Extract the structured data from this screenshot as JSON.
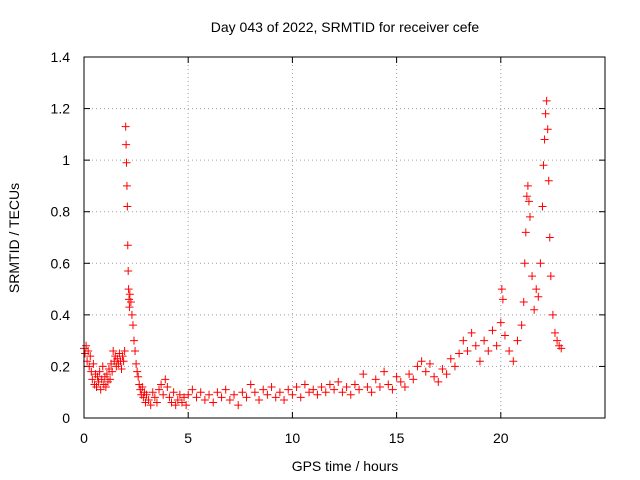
{
  "chart_data": {
    "type": "scatter",
    "title": "Day 043 of 2022, SRMTID for receiver cefe",
    "xlabel": "GPS time / hours",
    "ylabel": "SRMTID / TECUs",
    "xlim": [
      0,
      25
    ],
    "ylim": [
      0,
      1.4
    ],
    "x_ticks": [
      0,
      5,
      10,
      15,
      20
    ],
    "y_ticks": [
      0,
      0.2,
      0.4,
      0.6,
      0.8,
      1,
      1.2,
      1.4
    ],
    "x_tick_labels": [
      "0",
      "5",
      "10",
      "15",
      "20"
    ],
    "y_tick_labels": [
      "0",
      "0.2",
      "0.4",
      "0.6",
      "0.8",
      "1",
      "1.2",
      "1.4"
    ],
    "grid": true,
    "marker": "+",
    "color": "#ff0000",
    "series": [
      {
        "name": "SRMTID",
        "points": [
          [
            0.0,
            0.27
          ],
          [
            0.05,
            0.25
          ],
          [
            0.1,
            0.28
          ],
          [
            0.15,
            0.22
          ],
          [
            0.2,
            0.26
          ],
          [
            0.25,
            0.2
          ],
          [
            0.3,
            0.24
          ],
          [
            0.35,
            0.18
          ],
          [
            0.4,
            0.15
          ],
          [
            0.45,
            0.21
          ],
          [
            0.5,
            0.13
          ],
          [
            0.55,
            0.17
          ],
          [
            0.6,
            0.12
          ],
          [
            0.65,
            0.16
          ],
          [
            0.7,
            0.14
          ],
          [
            0.75,
            0.18
          ],
          [
            0.8,
            0.11
          ],
          [
            0.85,
            0.15
          ],
          [
            0.9,
            0.2
          ],
          [
            0.95,
            0.13
          ],
          [
            1.0,
            0.16
          ],
          [
            1.05,
            0.12
          ],
          [
            1.1,
            0.17
          ],
          [
            1.15,
            0.14
          ],
          [
            1.2,
            0.19
          ],
          [
            1.25,
            0.15
          ],
          [
            1.3,
            0.21
          ],
          [
            1.35,
            0.18
          ],
          [
            1.4,
            0.26
          ],
          [
            1.45,
            0.22
          ],
          [
            1.5,
            0.24
          ],
          [
            1.55,
            0.2
          ],
          [
            1.6,
            0.23
          ],
          [
            1.65,
            0.21
          ],
          [
            1.7,
            0.25
          ],
          [
            1.75,
            0.22
          ],
          [
            1.8,
            0.19
          ],
          [
            1.85,
            0.24
          ],
          [
            1.9,
            0.22
          ],
          [
            1.95,
            0.26
          ],
          [
            2.0,
            1.13
          ],
          [
            2.02,
            1.06
          ],
          [
            2.04,
            0.99
          ],
          [
            2.06,
            0.9
          ],
          [
            2.08,
            0.82
          ],
          [
            2.1,
            0.67
          ],
          [
            2.12,
            0.57
          ],
          [
            2.14,
            0.5
          ],
          [
            2.16,
            0.46
          ],
          [
            2.18,
            0.43
          ],
          [
            2.2,
            0.48
          ],
          [
            2.25,
            0.45
          ],
          [
            2.3,
            0.4
          ],
          [
            2.35,
            0.36
          ],
          [
            2.4,
            0.3
          ],
          [
            2.45,
            0.26
          ],
          [
            2.5,
            0.21
          ],
          [
            2.55,
            0.18
          ],
          [
            2.6,
            0.16
          ],
          [
            2.65,
            0.13
          ],
          [
            2.7,
            0.11
          ],
          [
            2.75,
            0.09
          ],
          [
            2.8,
            0.12
          ],
          [
            2.85,
            0.08
          ],
          [
            2.9,
            0.1
          ],
          [
            2.95,
            0.06
          ],
          [
            3.0,
            0.09
          ],
          [
            3.1,
            0.07
          ],
          [
            3.2,
            0.05
          ],
          [
            3.3,
            0.1
          ],
          [
            3.4,
            0.08
          ],
          [
            3.5,
            0.06
          ],
          [
            3.6,
            0.11
          ],
          [
            3.7,
            0.13
          ],
          [
            3.8,
            0.09
          ],
          [
            3.9,
            0.15
          ],
          [
            4.0,
            0.12
          ],
          [
            4.1,
            0.08
          ],
          [
            4.2,
            0.06
          ],
          [
            4.3,
            0.1
          ],
          [
            4.4,
            0.05
          ],
          [
            4.5,
            0.07
          ],
          [
            4.6,
            0.09
          ],
          [
            4.7,
            0.06
          ],
          [
            4.8,
            0.08
          ],
          [
            4.9,
            0.05
          ],
          [
            5.0,
            0.09
          ],
          [
            5.2,
            0.11
          ],
          [
            5.4,
            0.08
          ],
          [
            5.6,
            0.1
          ],
          [
            5.8,
            0.07
          ],
          [
            6.0,
            0.09
          ],
          [
            6.2,
            0.06
          ],
          [
            6.4,
            0.1
          ],
          [
            6.6,
            0.08
          ],
          [
            6.8,
            0.11
          ],
          [
            7.0,
            0.07
          ],
          [
            7.2,
            0.09
          ],
          [
            7.4,
            0.05
          ],
          [
            7.6,
            0.1
          ],
          [
            7.8,
            0.08
          ],
          [
            8.0,
            0.13
          ],
          [
            8.2,
            0.1
          ],
          [
            8.4,
            0.07
          ],
          [
            8.6,
            0.11
          ],
          [
            8.8,
            0.09
          ],
          [
            9.0,
            0.12
          ],
          [
            9.2,
            0.08
          ],
          [
            9.4,
            0.1
          ],
          [
            9.6,
            0.07
          ],
          [
            9.8,
            0.11
          ],
          [
            10.0,
            0.09
          ],
          [
            10.2,
            0.12
          ],
          [
            10.4,
            0.08
          ],
          [
            10.6,
            0.13
          ],
          [
            10.8,
            0.1
          ],
          [
            11.0,
            0.11
          ],
          [
            11.2,
            0.09
          ],
          [
            11.4,
            0.12
          ],
          [
            11.6,
            0.1
          ],
          [
            11.8,
            0.13
          ],
          [
            12.0,
            0.11
          ],
          [
            12.2,
            0.14
          ],
          [
            12.4,
            0.1
          ],
          [
            12.6,
            0.12
          ],
          [
            12.8,
            0.09
          ],
          [
            13.0,
            0.13
          ],
          [
            13.2,
            0.11
          ],
          [
            13.4,
            0.17
          ],
          [
            13.6,
            0.12
          ],
          [
            13.8,
            0.1
          ],
          [
            14.0,
            0.15
          ],
          [
            14.2,
            0.12
          ],
          [
            14.4,
            0.18
          ],
          [
            14.6,
            0.13
          ],
          [
            14.8,
            0.11
          ],
          [
            15.0,
            0.16
          ],
          [
            15.2,
            0.14
          ],
          [
            15.4,
            0.12
          ],
          [
            15.6,
            0.17
          ],
          [
            15.8,
            0.15
          ],
          [
            16.0,
            0.2
          ],
          [
            16.2,
            0.22
          ],
          [
            16.4,
            0.18
          ],
          [
            16.6,
            0.21
          ],
          [
            16.8,
            0.16
          ],
          [
            17.0,
            0.14
          ],
          [
            17.2,
            0.19
          ],
          [
            17.4,
            0.17
          ],
          [
            17.6,
            0.23
          ],
          [
            17.8,
            0.2
          ],
          [
            18.0,
            0.25
          ],
          [
            18.2,
            0.3
          ],
          [
            18.4,
            0.26
          ],
          [
            18.6,
            0.33
          ],
          [
            18.8,
            0.28
          ],
          [
            19.0,
            0.22
          ],
          [
            19.2,
            0.3
          ],
          [
            19.4,
            0.26
          ],
          [
            19.6,
            0.34
          ],
          [
            19.8,
            0.28
          ],
          [
            20.0,
            0.37
          ],
          [
            20.05,
            0.5
          ],
          [
            20.1,
            0.46
          ],
          [
            20.2,
            0.32
          ],
          [
            20.4,
            0.26
          ],
          [
            20.6,
            0.22
          ],
          [
            20.8,
            0.3
          ],
          [
            21.0,
            0.36
          ],
          [
            21.1,
            0.45
          ],
          [
            21.15,
            0.6
          ],
          [
            21.2,
            0.72
          ],
          [
            21.25,
            0.86
          ],
          [
            21.3,
            0.9
          ],
          [
            21.35,
            0.84
          ],
          [
            21.4,
            0.78
          ],
          [
            21.5,
            0.55
          ],
          [
            21.6,
            0.42
          ],
          [
            21.7,
            0.5
          ],
          [
            21.8,
            0.47
          ],
          [
            21.9,
            0.6
          ],
          [
            22.0,
            0.82
          ],
          [
            22.05,
            0.98
          ],
          [
            22.1,
            1.08
          ],
          [
            22.15,
            1.18
          ],
          [
            22.2,
            1.23
          ],
          [
            22.25,
            1.12
          ],
          [
            22.3,
            0.92
          ],
          [
            22.35,
            0.7
          ],
          [
            22.4,
            0.55
          ],
          [
            22.5,
            0.4
          ],
          [
            22.6,
            0.33
          ],
          [
            22.7,
            0.3
          ],
          [
            22.8,
            0.28
          ],
          [
            22.9,
            0.27
          ]
        ]
      }
    ]
  }
}
